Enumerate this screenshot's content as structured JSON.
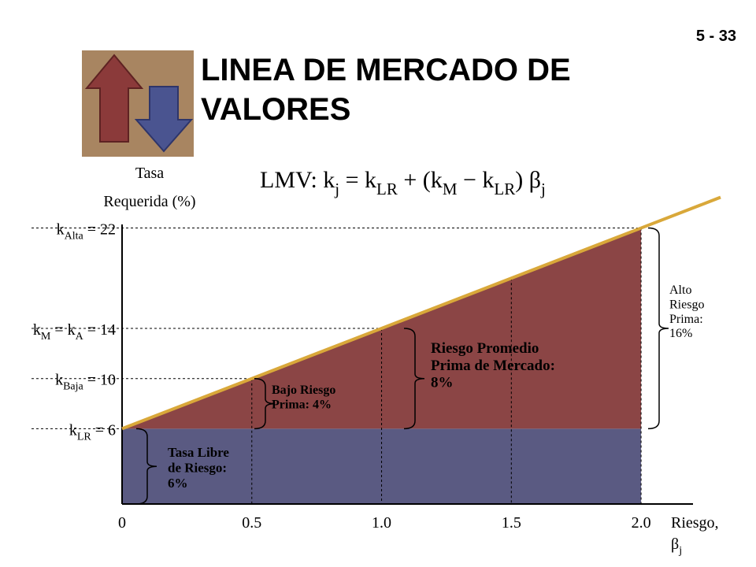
{
  "slide_number": "5 - 33",
  "chart_data": {
    "type": "line",
    "title": [
      "LINEA DE MERCADO DE",
      "VALORES"
    ],
    "formula": [
      "LMV: k",
      "j",
      " = k",
      "LR",
      " + (k",
      "M",
      " − k",
      "LR",
      ") β",
      "j"
    ],
    "y_label": [
      "Tasa",
      "Requerida (%)"
    ],
    "x_label": [
      [
        "Riesgo,"
      ],
      [
        "β",
        "j"
      ]
    ],
    "x": [
      0,
      0.5,
      1.0,
      1.5,
      2.0
    ],
    "series": [
      {
        "name": "LMV",
        "color": "#d9a83a",
        "values": [
          6,
          10,
          14,
          18,
          22
        ]
      }
    ],
    "xlim": [
      0,
      2.2
    ],
    "ylim": [
      0,
      22.6
    ],
    "xticks": [
      0,
      0.5,
      {
        "value": 1,
        "label": "1.0"
      },
      1.5,
      {
        "value": 2,
        "label": "2.0"
      }
    ],
    "yticks": [
      {
        "value": 22,
        "label": [
          "k",
          "Alta",
          " = 22"
        ]
      },
      {
        "value": 14,
        "label": [
          "k",
          "M",
          " = k",
          "A",
          " = 14"
        ]
      },
      {
        "value": 10,
        "label": [
          "k",
          "Baja",
          " = 10"
        ]
      },
      {
        "value": 6,
        "label": [
          "k",
          "LR",
          " = 6"
        ]
      }
    ],
    "risk_free_color": "#5a5a82",
    "premium_color": "#8b4545",
    "annotations": [
      {
        "lines": [
          "Tasa Libre",
          "de Riesgo:",
          "6%"
        ],
        "from": 0,
        "to": 6
      },
      {
        "lines": [
          "Bajo Riesgo",
          "Prima: 4%"
        ],
        "from": 6,
        "to": 10
      },
      {
        "lines": [
          "Riesgo Promedio",
          "Prima de Mercado:",
          "8%"
        ],
        "from": 6,
        "to": 14
      },
      {
        "lines": [
          "Alto",
          "Riesgo",
          "Prima:",
          "16%"
        ],
        "from": 6,
        "to": 22
      }
    ]
  }
}
